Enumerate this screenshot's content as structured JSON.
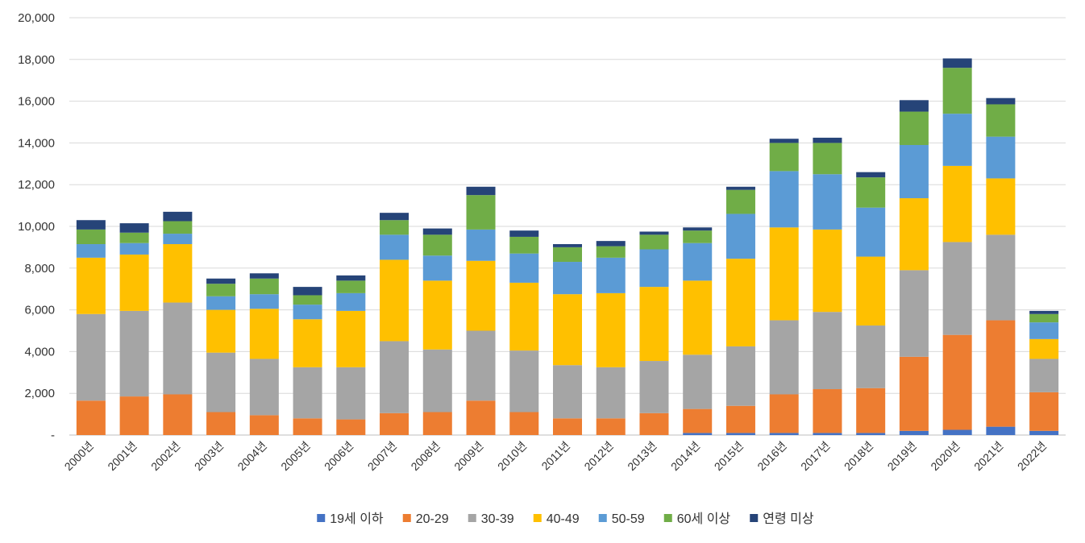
{
  "chart_data": {
    "type": "bar",
    "stacked": true,
    "categories": [
      "2000년",
      "2001년",
      "2002년",
      "2003년",
      "2004년",
      "2005년",
      "2006년",
      "2007년",
      "2008년",
      "2009년",
      "2010년",
      "2011년",
      "2012년",
      "2013년",
      "2014년",
      "2015년",
      "2016년",
      "2017년",
      "2018년",
      "2019년",
      "2020년",
      "2021년",
      "2022년"
    ],
    "ylim": [
      0,
      20000
    ],
    "yticks": [
      0,
      2000,
      4000,
      6000,
      8000,
      10000,
      12000,
      14000,
      16000,
      18000,
      20000
    ],
    "ytick_labels": [
      "-",
      "2,000",
      "4,000",
      "6,000",
      "8,000",
      "10,000",
      "12,000",
      "14,000",
      "16,000",
      "18,000",
      "20,000"
    ],
    "grid": true,
    "legend_position": "bottom",
    "series": [
      {
        "name": "19세 이하",
        "color": "#4472C4",
        "values": [
          0,
          0,
          0,
          0,
          0,
          0,
          0,
          0,
          0,
          0,
          0,
          0,
          0,
          0,
          100,
          100,
          100,
          100,
          100,
          200,
          250,
          400,
          200
        ]
      },
      {
        "name": "20-29",
        "color": "#ED7D31",
        "values": [
          1650,
          1850,
          1950,
          1100,
          950,
          800,
          750,
          1050,
          1100,
          1650,
          1100,
          800,
          800,
          1050,
          1150,
          1300,
          1850,
          2100,
          2150,
          3550,
          4550,
          5100,
          1850
        ]
      },
      {
        "name": "30-39",
        "color": "#A5A5A5",
        "values": [
          4150,
          4100,
          4400,
          2850,
          2700,
          2450,
          2500,
          3450,
          3000,
          3350,
          2950,
          2550,
          2450,
          2500,
          2600,
          2850,
          3550,
          3700,
          3000,
          4150,
          4450,
          4100,
          1600
        ]
      },
      {
        "name": "40-49",
        "color": "#FFC000",
        "values": [
          2700,
          2700,
          2800,
          2050,
          2400,
          2300,
          2700,
          3900,
          3300,
          3350,
          3250,
          3400,
          3550,
          3550,
          3550,
          4200,
          4450,
          3950,
          3300,
          3450,
          3650,
          2700,
          950
        ]
      },
      {
        "name": "50-59",
        "color": "#5B9BD5",
        "values": [
          650,
          550,
          500,
          650,
          700,
          700,
          850,
          1200,
          1200,
          1500,
          1400,
          1550,
          1700,
          1800,
          1800,
          2150,
          2700,
          2650,
          2350,
          2550,
          2500,
          2000,
          800
        ]
      },
      {
        "name": "60세 이상",
        "color": "#70AD47",
        "values": [
          700,
          500,
          600,
          600,
          750,
          450,
          600,
          700,
          1000,
          1650,
          800,
          700,
          550,
          700,
          600,
          1150,
          1350,
          1500,
          1450,
          1600,
          2200,
          1550,
          400
        ]
      },
      {
        "name": "연령 미상",
        "color": "#264478",
        "values": [
          450,
          450,
          450,
          250,
          250,
          400,
          250,
          350,
          300,
          400,
          300,
          150,
          250,
          150,
          150,
          150,
          200,
          250,
          250,
          550,
          450,
          300,
          150
        ]
      }
    ]
  }
}
